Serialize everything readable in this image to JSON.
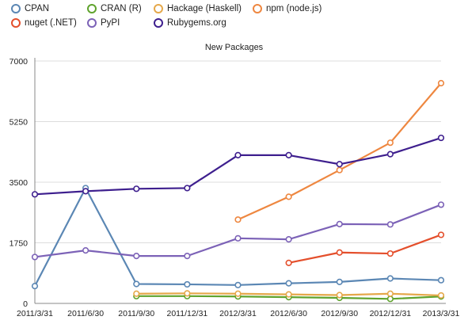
{
  "chart_data": {
    "type": "line",
    "title": "New Packages",
    "xlabel": "",
    "ylabel": "",
    "ylim": [
      0,
      7000
    ],
    "yticks": [
      0,
      1750,
      3500,
      5250,
      7000
    ],
    "grid": true,
    "legend_position": "top",
    "categories": [
      "2011/3/31",
      "2011/6/30",
      "2011/9/30",
      "2011/12/31",
      "2012/3/31",
      "2012/6/30",
      "2012/9/30",
      "2012/12/31",
      "2013/3/31"
    ],
    "series": [
      {
        "name": "CPAN",
        "color": "#5b87b4",
        "values": [
          500,
          3330,
          560,
          550,
          530,
          580,
          620,
          720,
          670
        ]
      },
      {
        "name": "CRAN (R)",
        "color": "#5fa32d",
        "values": [
          null,
          null,
          210,
          210,
          200,
          180,
          160,
          130,
          200
        ]
      },
      {
        "name": "Hackage (Haskell)",
        "color": "#e5a84a",
        "values": [
          null,
          null,
          280,
          290,
          280,
          260,
          240,
          280,
          230
        ]
      },
      {
        "name": "npm (node.js)",
        "color": "#ee8740",
        "values": [
          null,
          null,
          null,
          null,
          2420,
          3080,
          3850,
          4640,
          6360
        ]
      },
      {
        "name": "nuget (.NET)",
        "color": "#e44f2c",
        "values": [
          null,
          null,
          null,
          null,
          null,
          1170,
          1470,
          1440,
          1980
        ]
      },
      {
        "name": "PyPI",
        "color": "#7c62b7",
        "values": [
          1340,
          1530,
          1370,
          1370,
          1880,
          1850,
          2290,
          2280,
          2850
        ]
      },
      {
        "name": "Rubygems.org",
        "color": "#3e1f8e",
        "values": [
          3150,
          3240,
          3310,
          3330,
          4280,
          4280,
          4020,
          4310,
          4780
        ]
      }
    ]
  },
  "colors": {
    "axis": "#888888",
    "grid": "#dddddd",
    "text": "#222222"
  }
}
